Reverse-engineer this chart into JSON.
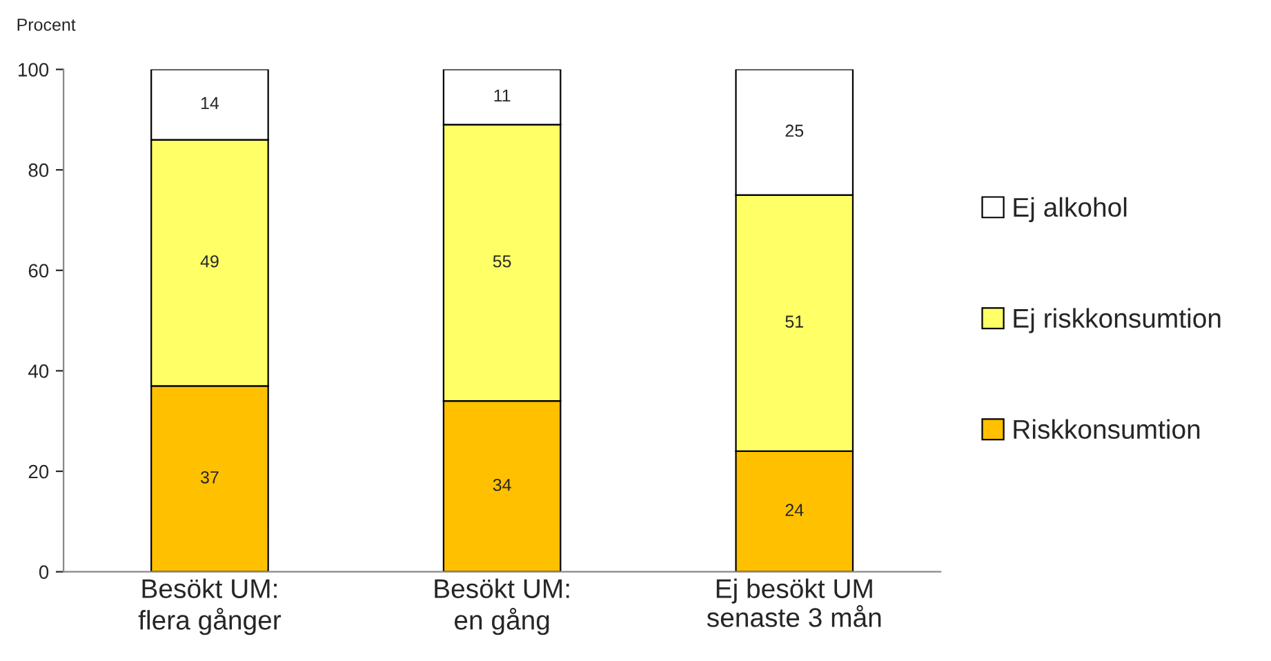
{
  "chart_data": {
    "type": "bar",
    "stacked": true,
    "ylabel": "Procent",
    "categories": [
      "Besökt UM:\nflera gånger",
      "Besökt UM:\nen gång",
      "Ej besökt UM\nsenaste 3 mån"
    ],
    "series": [
      {
        "name": "Riskkonsumtion",
        "color": "#ffc000",
        "values": [
          37,
          34,
          24
        ]
      },
      {
        "name": "Ej riskkonsumtion",
        "color": "#ffff66",
        "values": [
          49,
          55,
          51
        ]
      },
      {
        "name": "Ej alkohol",
        "color": "#ffffff",
        "values": [
          14,
          11,
          25
        ]
      }
    ],
    "ylim": [
      0,
      100
    ],
    "yticks": [
      0,
      20,
      40,
      60,
      80,
      100
    ],
    "grid": false,
    "legend": "right",
    "data_labels": true
  }
}
